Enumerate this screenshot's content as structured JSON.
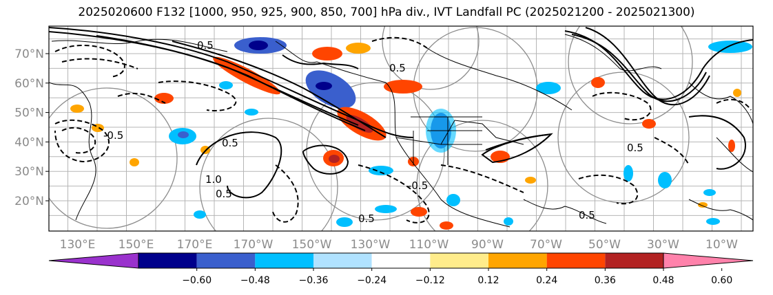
{
  "title": "2025020600 F132 [1000, 950, 925, 900, 850, 700] hPa div., IVT Landfall PC (2025021200 - 2025021300)",
  "lat_labels": [
    "70°N",
    "60°N",
    "50°N",
    "40°N",
    "30°N",
    "20°N"
  ],
  "lat_values": [
    70,
    60,
    50,
    40,
    30,
    20
  ],
  "lon_labels": [
    "130°E",
    "150°E",
    "170°E",
    "170°W",
    "150°W",
    "130°W",
    "110°W",
    "90°W",
    "70°W",
    "50°W",
    "30°W",
    "10°W"
  ],
  "colorbar": {
    "ticks": [
      "−0.60",
      "−0.48",
      "−0.36",
      "−0.24",
      "−0.12",
      "0.12",
      "0.24",
      "0.36",
      "0.48",
      "0.60"
    ],
    "colors": [
      "#9a32cd",
      "#00008b",
      "#3a5fcd",
      "#00bfff",
      "#b0e2ff",
      "#ffffff",
      "#ffec8b",
      "#ffa500",
      "#ff4500",
      "#b22222",
      "#ff82ab"
    ]
  },
  "contour_labels": [
    "0.5",
    "0.5",
    "1.0",
    "0.5",
    "-0.5",
    "0.5",
    "0.5",
    "0.5",
    "0.5",
    "-0.5"
  ]
}
